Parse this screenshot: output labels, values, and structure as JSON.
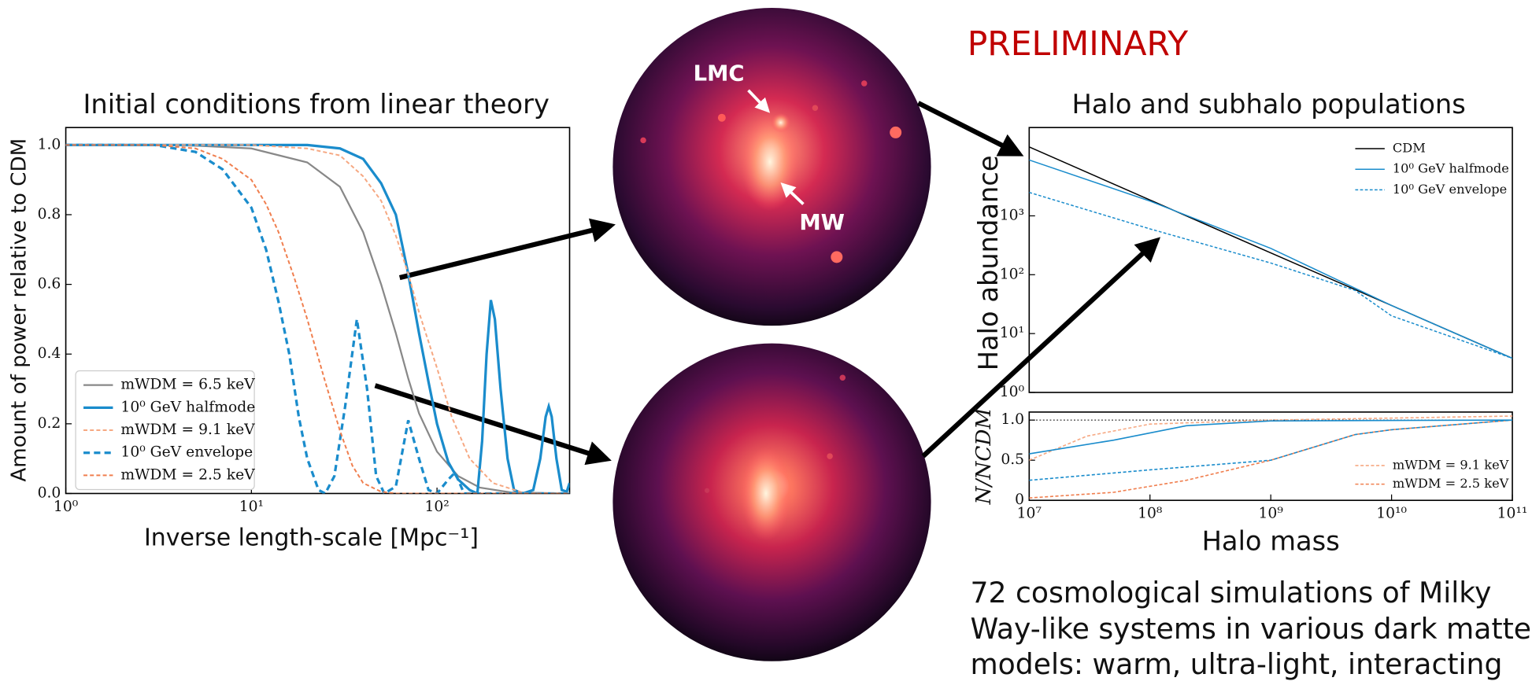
{
  "annotations": {
    "stamp": "PRELIMINARY",
    "lmc": "LMC",
    "mw": "MW",
    "caption": [
      "72 cosmological simulations of Milky",
      "Way-like systems in various dark matter",
      "models: warm, ultra-light, interacting"
    ]
  },
  "chart_data": [
    {
      "type": "line",
      "title": "Initial conditions from linear theory",
      "x_label": "Inverse length-scale [Mpc⁻¹]",
      "y_label": "Amount of power relative to CDM",
      "xscale": "log",
      "xlim": [
        1,
        518
      ],
      "ylim": [
        0,
        1.05
      ],
      "xticks": [
        {
          "value": 1,
          "label": "10⁰"
        },
        {
          "value": 10,
          "label": "10¹"
        },
        {
          "value": 100,
          "label": "10²"
        }
      ],
      "yticks": [
        {
          "value": 0,
          "label": "0.0"
        },
        0.2,
        0.4,
        0.6,
        0.8,
        {
          "value": 1,
          "label": "1.0"
        }
      ],
      "legend": "lower left",
      "legend_frame": true,
      "series": [
        {
          "name": "mWDM = 6.5 keV",
          "color": "#888888",
          "linestyle": "solid",
          "linewidth": 1.8,
          "x": [
            1,
            3,
            5,
            10,
            20,
            30,
            40,
            50,
            60,
            70,
            80,
            100,
            130,
            170,
            250,
            518
          ],
          "values": [
            1,
            1,
            0.998,
            0.99,
            0.95,
            0.88,
            0.75,
            0.6,
            0.46,
            0.33,
            0.23,
            0.12,
            0.05,
            0.017,
            0.003,
            0
          ]
        },
        {
          "name": "10⁰ GeV halfmode",
          "color": "#1a8ccc",
          "linestyle": "solid",
          "linewidth": 2.6,
          "x": [
            1,
            10,
            20,
            30,
            40,
            50,
            60,
            70,
            80,
            90,
            100,
            115,
            130,
            150,
            165,
            175,
            185,
            195,
            205,
            220,
            240,
            260,
            290,
            330,
            360,
            385,
            400,
            415,
            440,
            470,
            500,
            518
          ],
          "values": [
            1,
            1,
            1,
            0.99,
            0.96,
            0.89,
            0.8,
            0.63,
            0.46,
            0.32,
            0.2,
            0.09,
            0.04,
            0.01,
            0,
            0.15,
            0.4,
            0.555,
            0.5,
            0.3,
            0.1,
            0.01,
            0,
            0.01,
            0.1,
            0.22,
            0.25,
            0.22,
            0.1,
            0.01,
            0.005,
            0.03
          ]
        },
        {
          "name": "mWDM = 9.1 keV",
          "color": "#f6a882",
          "linestyle": "dashed",
          "linewidth": 1.6,
          "x": [
            1,
            10,
            20,
            30,
            40,
            50,
            60,
            70,
            80,
            100,
            120,
            150,
            200,
            300,
            518
          ],
          "values": [
            1,
            1,
            0.99,
            0.97,
            0.91,
            0.84,
            0.74,
            0.63,
            0.52,
            0.36,
            0.22,
            0.1,
            0.03,
            0,
            0
          ]
        },
        {
          "name": "10⁰ GeV envelope",
          "color": "#1a8ccc",
          "linestyle": "dashed",
          "linewidth": 2.6,
          "x": [
            1,
            3,
            5,
            7,
            10,
            12,
            14,
            16,
            18,
            20,
            23,
            25,
            28,
            32,
            37,
            42,
            47,
            52,
            60,
            70,
            80,
            90,
            100,
            115,
            125,
            140,
            518
          ],
          "values": [
            1,
            1,
            0.98,
            0.93,
            0.82,
            0.7,
            0.55,
            0.4,
            0.22,
            0.1,
            0.01,
            0,
            0.05,
            0.25,
            0.5,
            0.3,
            0.05,
            0,
            0.02,
            0.21,
            0.1,
            0.01,
            0,
            0.04,
            0.06,
            0,
            0
          ]
        },
        {
          "name": "mWDM = 2.5 keV",
          "color": "#f07f4f",
          "linestyle": "dashed",
          "linewidth": 1.6,
          "x": [
            1,
            3,
            5,
            7,
            10,
            12,
            14,
            17,
            20,
            25,
            30,
            35,
            40,
            50,
            60,
            518
          ],
          "values": [
            1,
            1,
            0.99,
            0.96,
            0.9,
            0.83,
            0.75,
            0.62,
            0.5,
            0.32,
            0.18,
            0.08,
            0.03,
            0.005,
            0,
            0
          ]
        }
      ]
    },
    {
      "type": "line",
      "title": "Halo and subhalo populations",
      "y_label": "Halo abundance",
      "xscale": "log",
      "yscale": "log",
      "xlim": [
        10000000,
        100000000000
      ],
      "ylim": [
        1,
        31623
      ],
      "yticks": [
        {
          "value": 1,
          "label": "10⁰"
        },
        {
          "value": 10,
          "label": "10¹"
        },
        {
          "value": 100,
          "label": "10²"
        },
        {
          "value": 1000,
          "label": "10³"
        }
      ],
      "legend": "upper right",
      "series": [
        {
          "name": "CDM",
          "color": "#000000",
          "linestyle": "solid",
          "linewidth": 1.2,
          "x": [
            10000000,
            100000000,
            1000000000,
            10000000000,
            100000000000
          ],
          "values": [
            14800,
            1860,
            235,
            30,
            3.8
          ]
        },
        {
          "name": "10⁰ GeV halfmode",
          "color": "#1a8ccc",
          "linestyle": "solid",
          "linewidth": 1.2,
          "x": [
            10000000,
            100000000,
            1000000000,
            10000000000,
            100000000000
          ],
          "values": [
            8900,
            1780,
            280,
            30,
            3.8
          ]
        },
        {
          "name": "10⁰ GeV envelope",
          "color": "#1a8ccc",
          "linestyle": "dashed",
          "linewidth": 1.2,
          "x": [
            10000000,
            100000000,
            1000000000,
            5000000000,
            10000000000,
            100000000000
          ],
          "values": [
            2500,
            600,
            158,
            54,
            20,
            3.8
          ]
        }
      ]
    },
    {
      "type": "line",
      "x_label": "Halo mass",
      "y_label": "N/NCDM",
      "xscale": "log",
      "xlim": [
        10000000,
        100000000000
      ],
      "ylim": [
        0,
        1.1
      ],
      "xticks": [
        {
          "value": 10000000,
          "label": "10⁷"
        },
        {
          "value": 100000000,
          "label": "10⁸"
        },
        {
          "value": 1000000000,
          "label": "10⁹"
        },
        {
          "value": 10000000000,
          "label": "10¹⁰"
        },
        {
          "value": 100000000000,
          "label": "10¹¹"
        }
      ],
      "yticks": [
        0,
        0.5,
        {
          "value": 1,
          "label": "1.0"
        }
      ],
      "hline": 1,
      "legend": "lower right",
      "series": [
        {
          "name": "mWDM = 9.1 keV",
          "color": "#f6a882",
          "linestyle": "dashed",
          "linewidth": 1.3,
          "x": [
            10000000,
            30000000,
            100000000,
            1000000000,
            100000000000
          ],
          "values": [
            0.5,
            0.8,
            0.95,
            1.0,
            1.05
          ]
        },
        {
          "name": "mWDM = 2.5 keV",
          "color": "#f07f4f",
          "linestyle": "dashed",
          "linewidth": 1.3,
          "x": [
            10000000,
            50000000,
            200000000,
            1000000000,
            5000000000,
            10000000000,
            100000000000
          ],
          "values": [
            0.03,
            0.1,
            0.25,
            0.5,
            0.82,
            0.88,
            1.0
          ]
        },
        {
          "color": "#1a8ccc",
          "linestyle": "solid",
          "linewidth": 1.3,
          "x": [
            10000000,
            50000000,
            200000000,
            1000000000,
            100000000000
          ],
          "values": [
            0.58,
            0.75,
            0.93,
            0.99,
            1.0
          ]
        },
        {
          "color": "#1a8ccc",
          "linestyle": "dashed",
          "linewidth": 1.3,
          "x": [
            10000000,
            100000000,
            1000000000,
            5000000000,
            10000000000,
            100000000000
          ],
          "values": [
            0.25,
            0.38,
            0.5,
            0.82,
            0.88,
            1.0
          ]
        }
      ]
    }
  ]
}
